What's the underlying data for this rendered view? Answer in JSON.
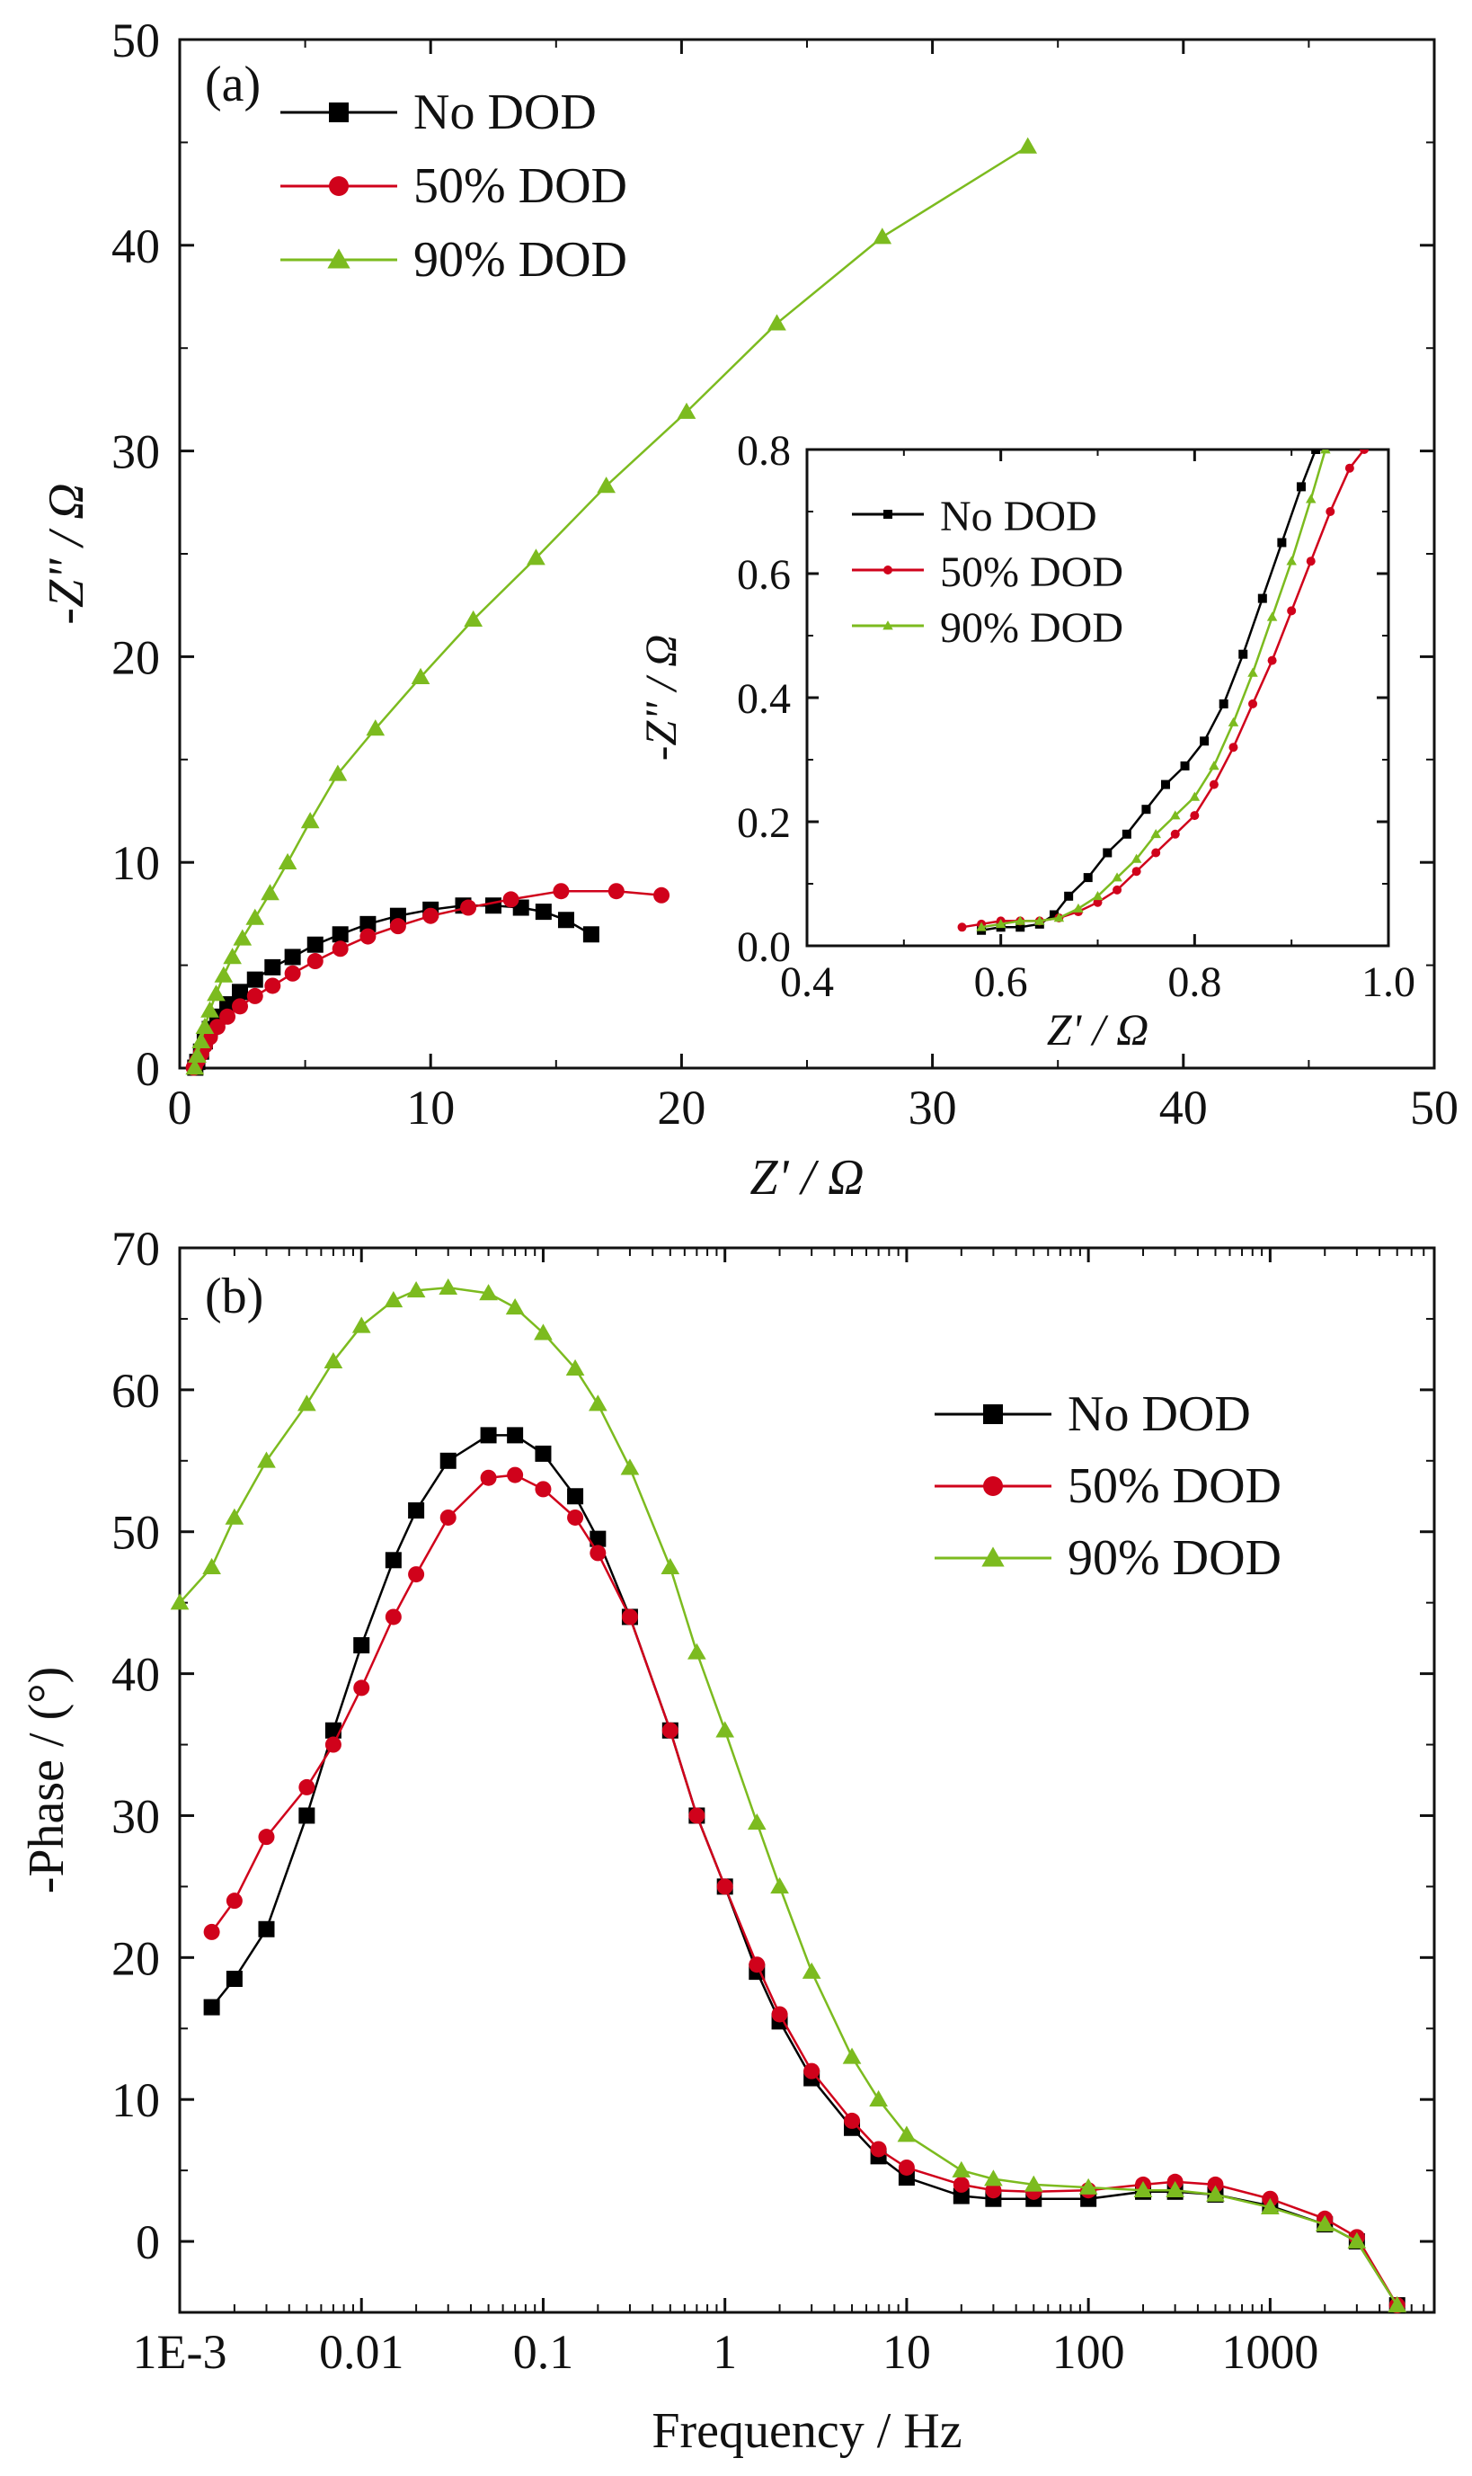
{
  "colors": {
    "no_dod": "#000000",
    "dod50": "#d0021b",
    "dod90": "#7cbb1f"
  },
  "chart_data": [
    {
      "panel": "(a)",
      "type": "scatter",
      "xlabel": "Z' / Ω",
      "ylabel": "-Z\" / Ω",
      "xlim": [
        0,
        50
      ],
      "ylim": [
        0,
        50
      ],
      "xticks": [
        "0",
        "10",
        "20",
        "30",
        "40",
        "50"
      ],
      "yticks": [
        "0",
        "10",
        "20",
        "30",
        "40",
        "50"
      ],
      "legend_position": "top-left",
      "series": [
        {
          "name": "No DOD",
          "marker": "square",
          "x": [
            0.62,
            0.7,
            0.85,
            1.0,
            1.2,
            1.5,
            1.9,
            2.4,
            3.0,
            3.7,
            4.5,
            5.4,
            6.4,
            7.5,
            8.7,
            10.0,
            11.3,
            12.5,
            13.6,
            14.5,
            15.4,
            16.4
          ],
          "y": [
            0.02,
            0.3,
            0.8,
            1.3,
            1.9,
            2.5,
            3.1,
            3.7,
            4.3,
            4.9,
            5.4,
            6.0,
            6.5,
            7.0,
            7.4,
            7.7,
            7.9,
            7.9,
            7.8,
            7.6,
            7.2,
            6.5
          ]
        },
        {
          "name": "50% DOD",
          "marker": "circle",
          "x": [
            0.56,
            0.6,
            0.7,
            0.85,
            1.0,
            1.2,
            1.5,
            1.9,
            2.4,
            3.0,
            3.7,
            4.5,
            5.4,
            6.4,
            7.5,
            8.7,
            10.0,
            11.5,
            13.2,
            15.2,
            17.4,
            19.2
          ],
          "y": [
            0.02,
            0.1,
            0.35,
            0.7,
            1.1,
            1.5,
            2.0,
            2.5,
            3.0,
            3.5,
            4.0,
            4.6,
            5.2,
            5.8,
            6.4,
            6.9,
            7.4,
            7.8,
            8.2,
            8.6,
            8.6,
            8.4
          ]
        },
        {
          "name": "90% DOD",
          "marker": "triangle",
          "x": [
            0.6,
            0.7,
            0.85,
            1.0,
            1.2,
            1.45,
            1.75,
            2.1,
            2.5,
            3.0,
            3.6,
            4.3,
            5.2,
            6.3,
            7.8,
            9.6,
            11.7,
            14.2,
            17.0,
            20.2,
            23.8,
            28.0,
            33.8
          ],
          "y": [
            0.02,
            0.6,
            1.3,
            2.0,
            2.8,
            3.6,
            4.5,
            5.4,
            6.3,
            7.3,
            8.5,
            10.0,
            12.0,
            14.3,
            16.5,
            19.0,
            21.8,
            24.8,
            28.3,
            31.9,
            36.2,
            40.4,
            44.8
          ]
        }
      ],
      "inset": {
        "type": "scatter",
        "xlabel": "Z' / Ω",
        "ylabel": "-Z\" / Ω",
        "xlim": [
          0.4,
          1.0
        ],
        "ylim": [
          0.0,
          0.8
        ],
        "xticks": [
          "0.4",
          "0.6",
          "0.8",
          "1.0"
        ],
        "yticks": [
          "0.0",
          "0.2",
          "0.4",
          "0.6",
          "0.8"
        ],
        "legend_position": "top-left",
        "series": [
          {
            "name": "No DOD",
            "marker": "square",
            "x": [
              0.58,
              0.6,
              0.62,
              0.64,
              0.655,
              0.67,
              0.69,
              0.71,
              0.73,
              0.75,
              0.77,
              0.79,
              0.81,
              0.83,
              0.85,
              0.87,
              0.89,
              0.91,
              0.925
            ],
            "y": [
              0.025,
              0.03,
              0.03,
              0.035,
              0.05,
              0.08,
              0.11,
              0.15,
              0.18,
              0.22,
              0.26,
              0.29,
              0.33,
              0.39,
              0.47,
              0.56,
              0.65,
              0.74,
              0.8
            ]
          },
          {
            "name": "50% DOD",
            "marker": "circle",
            "x": [
              0.56,
              0.58,
              0.6,
              0.62,
              0.64,
              0.66,
              0.68,
              0.7,
              0.72,
              0.74,
              0.76,
              0.78,
              0.8,
              0.82,
              0.84,
              0.86,
              0.88,
              0.9,
              0.92,
              0.94,
              0.96,
              0.975
            ],
            "y": [
              0.03,
              0.035,
              0.04,
              0.04,
              0.04,
              0.045,
              0.055,
              0.07,
              0.09,
              0.12,
              0.15,
              0.18,
              0.21,
              0.26,
              0.32,
              0.39,
              0.46,
              0.54,
              0.62,
              0.7,
              0.77,
              0.8
            ]
          },
          {
            "name": "90% DOD",
            "marker": "triangle",
            "x": [
              0.58,
              0.6,
              0.62,
              0.64,
              0.66,
              0.68,
              0.7,
              0.72,
              0.74,
              0.76,
              0.78,
              0.8,
              0.82,
              0.84,
              0.86,
              0.88,
              0.9,
              0.92,
              0.935
            ],
            "y": [
              0.03,
              0.035,
              0.04,
              0.04,
              0.045,
              0.06,
              0.08,
              0.11,
              0.14,
              0.18,
              0.21,
              0.24,
              0.29,
              0.36,
              0.44,
              0.53,
              0.62,
              0.72,
              0.8
            ]
          }
        ]
      }
    },
    {
      "panel": "(b)",
      "type": "scatter",
      "xlabel": "Frequency / Hz",
      "ylabel": "-Phase / (°)",
      "xscale": "log",
      "xlim": [
        0.001,
        8000
      ],
      "ylim": [
        -5,
        70
      ],
      "xticks": [
        "1E-3",
        "0.01",
        "0.1",
        "1",
        "10",
        "100",
        "1000"
      ],
      "yticks": [
        "0",
        "10",
        "20",
        "30",
        "40",
        "50",
        "60",
        "70"
      ],
      "legend_position": "top-right",
      "series": [
        {
          "name": "No DOD",
          "marker": "square",
          "x": [
            0.0015,
            0.002,
            0.003,
            0.005,
            0.007,
            0.01,
            0.015,
            0.02,
            0.03,
            0.05,
            0.07,
            0.1,
            0.15,
            0.2,
            0.3,
            0.5,
            0.7,
            1,
            1.5,
            2,
            3,
            5,
            7,
            10,
            20,
            30,
            50,
            100,
            200,
            300,
            500,
            1000,
            2000,
            3000,
            5000
          ],
          "y": [
            16.5,
            18.5,
            22,
            30,
            36,
            42,
            48,
            51.5,
            55,
            56.8,
            56.8,
            55.5,
            52.5,
            49.5,
            44,
            36,
            30,
            25,
            19,
            15.5,
            11.5,
            8,
            6,
            4.5,
            3.2,
            3.0,
            3.0,
            3.0,
            3.5,
            3.5,
            3.3,
            2.5,
            1.2,
            0,
            -4.5
          ]
        },
        {
          "name": "50% DOD",
          "marker": "circle",
          "x": [
            0.0015,
            0.002,
            0.003,
            0.005,
            0.007,
            0.01,
            0.015,
            0.02,
            0.03,
            0.05,
            0.07,
            0.1,
            0.15,
            0.2,
            0.3,
            0.5,
            0.7,
            1,
            1.5,
            2,
            3,
            5,
            7,
            10,
            20,
            30,
            50,
            100,
            200,
            300,
            500,
            1000,
            2000,
            3000,
            5000
          ],
          "y": [
            21.8,
            24,
            28.5,
            32,
            35,
            39,
            44,
            47,
            51,
            53.8,
            54,
            53,
            51,
            48.5,
            44,
            36,
            30,
            25,
            19.5,
            16,
            12,
            8.5,
            6.5,
            5.2,
            4.0,
            3.6,
            3.5,
            3.6,
            4.0,
            4.2,
            4.0,
            3.0,
            1.6,
            0.3,
            -4.5
          ]
        },
        {
          "name": "90% DOD",
          "marker": "triangle",
          "x": [
            0.001,
            0.0015,
            0.002,
            0.003,
            0.005,
            0.007,
            0.01,
            0.015,
            0.02,
            0.03,
            0.05,
            0.07,
            0.1,
            0.15,
            0.2,
            0.3,
            0.5,
            0.7,
            1,
            1.5,
            2,
            3,
            5,
            7,
            10,
            20,
            30,
            50,
            100,
            200,
            300,
            500,
            1000,
            2000,
            3000,
            5000
          ],
          "y": [
            45,
            47.5,
            51,
            55,
            59,
            62,
            64.5,
            66.3,
            67,
            67.2,
            66.8,
            65.8,
            64,
            61.5,
            59,
            54.5,
            47.5,
            41.5,
            36,
            29.5,
            25,
            19,
            13,
            10,
            7.5,
            5.0,
            4.4,
            4.0,
            3.8,
            3.6,
            3.6,
            3.3,
            2.4,
            1.2,
            0,
            -4.5
          ]
        }
      ]
    }
  ]
}
